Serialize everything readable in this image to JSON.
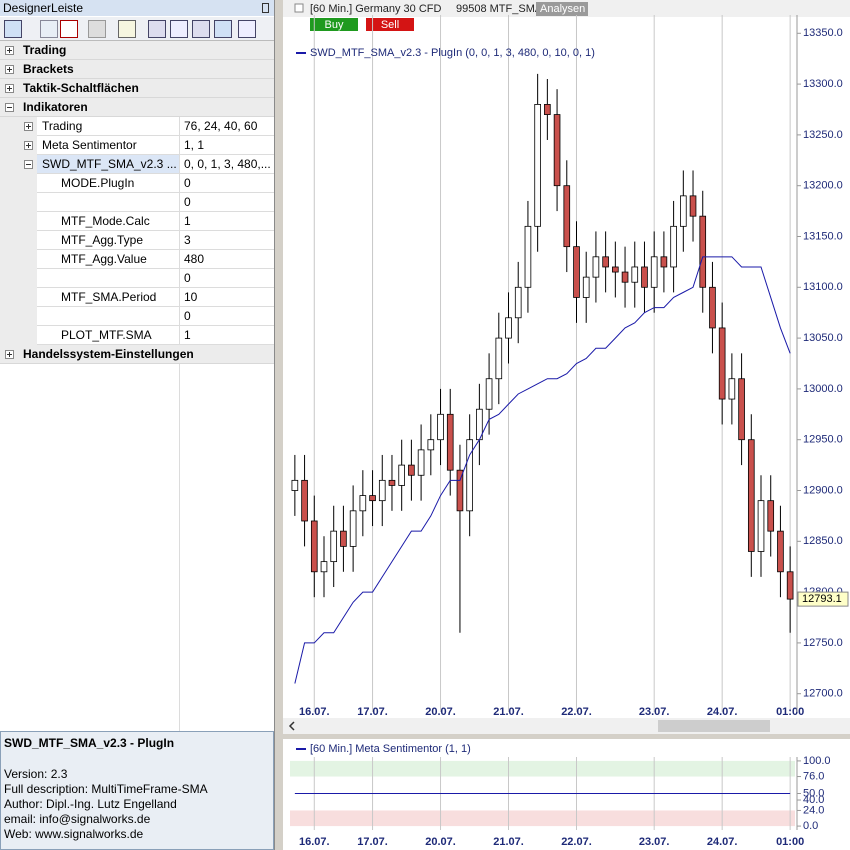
{
  "sidebar": {
    "title": "DesignerLeiste",
    "groups": [
      {
        "label": "Trading"
      },
      {
        "label": "Brackets"
      },
      {
        "label": "Taktik-Schaltflächen"
      },
      {
        "label": "Indikatoren",
        "children": [
          {
            "label": "Trading",
            "value": "76, 24, 40, 60"
          },
          {
            "label": "Meta Sentimentor",
            "value": "1, 1"
          },
          {
            "label": "SWD_MTF_SMA_v2.3 ...",
            "value": "0, 0, 1, 3, 480,...",
            "selected": true,
            "children": [
              {
                "label": "MODE.PlugIn",
                "value": 0
              },
              {
                "label": null,
                "value": 0
              },
              {
                "label": "MTF_Mode.Calc",
                "value": 1
              },
              {
                "label": "MTF_Agg.Type",
                "value": 3
              },
              {
                "label": "MTF_Agg.Value",
                "value": 480
              },
              {
                "label": null,
                "value": 0
              },
              {
                "label": "MTF_SMA.Period",
                "value": 10
              },
              {
                "label": null,
                "value": 0
              },
              {
                "label": "PLOT_MTF.SMA",
                "value": 1
              }
            ]
          }
        ]
      },
      {
        "label": "Handelssystem-Einstellungen"
      }
    ]
  },
  "description": {
    "title": "SWD_MTF_SMA_v2.3 - PlugIn",
    "lines": [
      "Version: 2.3",
      "Full description: MultiTimeFrame-SMA",
      "Author: Dipl.-Ing. Lutz Engelland",
      "email: info@signalworks.de",
      "Web: www.signalworks.de"
    ]
  },
  "chart_header": {
    "instrument": "[60 Min.] Germany 30 CFD",
    "account": "99508 MTF_SMA",
    "tab": "Analysen",
    "buttons": [
      {
        "label": "Buy",
        "color": "#1f9a1f"
      },
      {
        "label": "Sell",
        "color": "#d41414"
      }
    ]
  },
  "chart_data": [
    {
      "type": "candlestick",
      "xlim": [
        -0.5,
        51.5
      ],
      "xticks": [
        {
          "value": 2,
          "label": "16.07."
        },
        {
          "value": 8,
          "label": "17.07."
        },
        {
          "value": 15,
          "label": "20.07."
        },
        {
          "value": 22,
          "label": "21.07."
        },
        {
          "value": 29,
          "label": "22.07."
        },
        {
          "value": 37,
          "label": "23.07."
        },
        {
          "value": 44,
          "label": "24.07."
        },
        {
          "value": 51,
          "label": "01:00"
        }
      ],
      "ylim": [
        12682,
        13368
      ],
      "yticks": [
        {
          "value": 12700,
          "label": "12700.0"
        },
        {
          "value": 12750,
          "label": "12750.0"
        },
        {
          "value": 12800,
          "label": "12800.0"
        },
        {
          "value": 12850,
          "label": "12850.0"
        },
        {
          "value": 12900,
          "label": "12900.0"
        },
        {
          "value": 12950,
          "label": "12950.0"
        },
        {
          "value": 13000,
          "label": "13000.0"
        },
        {
          "value": 13050,
          "label": "13050.0"
        },
        {
          "value": 13100,
          "label": "13100.0"
        },
        {
          "value": 13150,
          "label": "13150.0"
        },
        {
          "value": 13200,
          "label": "13200.0"
        },
        {
          "value": 13250,
          "label": "13250.0"
        },
        {
          "value": 13300,
          "label": "13300.0"
        },
        {
          "value": 13350,
          "label": "13350.0"
        }
      ],
      "up_color": "#ffffff",
      "down_color": "#c9504c",
      "open": [
        12900,
        12910,
        12870,
        12820,
        12830,
        12860,
        12845,
        12880,
        12895,
        12890,
        12910,
        12905,
        12925,
        12915,
        12940,
        12950,
        12975,
        12920,
        12880,
        12950,
        12980,
        13010,
        13050,
        13070,
        13100,
        13160,
        13280,
        13270,
        13200,
        13140,
        13090,
        13110,
        13130,
        13120,
        13115,
        13105,
        13120,
        13100,
        13130,
        13120,
        13160,
        13190,
        13170,
        13100,
        13060,
        12990,
        13010,
        12950,
        12840,
        12890,
        12860,
        12820
      ],
      "high": [
        12935,
        12935,
        12895,
        12855,
        12885,
        12885,
        12905,
        12920,
        12920,
        12935,
        12935,
        12950,
        12950,
        12965,
        12975,
        13000,
        13000,
        12945,
        12975,
        13005,
        13035,
        13075,
        13095,
        13125,
        13185,
        13310,
        13305,
        13295,
        13225,
        13165,
        13135,
        13155,
        13155,
        13145,
        13140,
        13145,
        13145,
        13155,
        13155,
        13185,
        13215,
        13215,
        13195,
        13125,
        13085,
        13035,
        13035,
        12975,
        12915,
        12915,
        12885,
        12845
      ],
      "low": [
        12875,
        12845,
        12795,
        12795,
        12805,
        12820,
        12820,
        12855,
        12865,
        12865,
        12880,
        12880,
        12890,
        12890,
        12915,
        12925,
        12895,
        12760,
        12855,
        12925,
        12955,
        12985,
        13025,
        13045,
        13075,
        13135,
        13245,
        13175,
        13115,
        13065,
        13065,
        13085,
        13095,
        13090,
        13080,
        13080,
        13075,
        13075,
        13095,
        13095,
        13135,
        13145,
        13075,
        13035,
        12965,
        12965,
        12925,
        12815,
        12815,
        12835,
        12795,
        12760
      ],
      "close": [
        12910,
        12870,
        12820,
        12830,
        12860,
        12845,
        12880,
        12895,
        12890,
        12910,
        12905,
        12925,
        12915,
        12940,
        12950,
        12975,
        12920,
        12880,
        12950,
        12980,
        13010,
        13050,
        13070,
        13100,
        13160,
        13280,
        13270,
        13200,
        13140,
        13090,
        13110,
        13130,
        13120,
        13115,
        13105,
        13120,
        13100,
        13130,
        13120,
        13160,
        13190,
        13170,
        13100,
        13060,
        12990,
        13010,
        12950,
        12840,
        12890,
        12860,
        12820,
        12793.1
      ],
      "series": [
        {
          "name": "SWD_MTF_SMA_v2.3 - PlugIn  (0, 0, 1, 3, 480, 0, 10, 0, 1)",
          "color": "#1a1aa8",
          "values": [
            12710,
            12750,
            12750,
            12760,
            12760,
            12775,
            12790,
            12800,
            12800,
            12815,
            12830,
            12845,
            12860,
            12860,
            12875,
            12895,
            12910,
            12910,
            12935,
            12950,
            12970,
            12975,
            12985,
            12995,
            13000,
            13005,
            13010,
            13010,
            13015,
            13025,
            13030,
            13040,
            13040,
            13050,
            13060,
            13065,
            13075,
            13080,
            13080,
            13090,
            13095,
            13100,
            13130,
            13130,
            13130,
            13130,
            13120,
            13120,
            13120,
            13090,
            13060,
            13035
          ]
        }
      ]
    },
    {
      "type": "line",
      "xlim": [
        -0.5,
        51.5
      ],
      "xticks": [
        {
          "value": 2,
          "label": "16.07."
        },
        {
          "value": 8,
          "label": "17.07."
        },
        {
          "value": 15,
          "label": "20.07."
        },
        {
          "value": 22,
          "label": "21.07."
        },
        {
          "value": 29,
          "label": "22.07."
        },
        {
          "value": 37,
          "label": "23.07."
        },
        {
          "value": 44,
          "label": "24.07."
        },
        {
          "value": 51,
          "label": "01:00"
        }
      ],
      "ylim": [
        -6,
        106
      ],
      "yticks": [
        {
          "value": 100,
          "label": "100.0"
        },
        {
          "value": 76,
          "label": "76.0"
        },
        {
          "value": 50,
          "label": "50.0"
        },
        {
          "value": 40,
          "label": "40.0"
        },
        {
          "value": 24,
          "label": "24.0"
        },
        {
          "value": 0,
          "label": "0.0"
        }
      ],
      "bands": [
        {
          "from": 76,
          "to": 100,
          "color": "#e3f4e3"
        },
        {
          "from": 0,
          "to": 24,
          "color": "#f8dede"
        }
      ],
      "series": [
        {
          "name": "[60 Min.] Meta Sentimentor  (1, 1)",
          "color": "#1a1aa8",
          "values": [
            50,
            50,
            50,
            50,
            50,
            50,
            50,
            50,
            50,
            50,
            50,
            50,
            50,
            50,
            50,
            50,
            50,
            50,
            50,
            50,
            50,
            50,
            50,
            50,
            50,
            50,
            50,
            50,
            50,
            50,
            50,
            50,
            50,
            50,
            50,
            50,
            50,
            50,
            50,
            50,
            50,
            50,
            50,
            50,
            50,
            50,
            50,
            50,
            50,
            50,
            50,
            50
          ]
        }
      ]
    }
  ]
}
